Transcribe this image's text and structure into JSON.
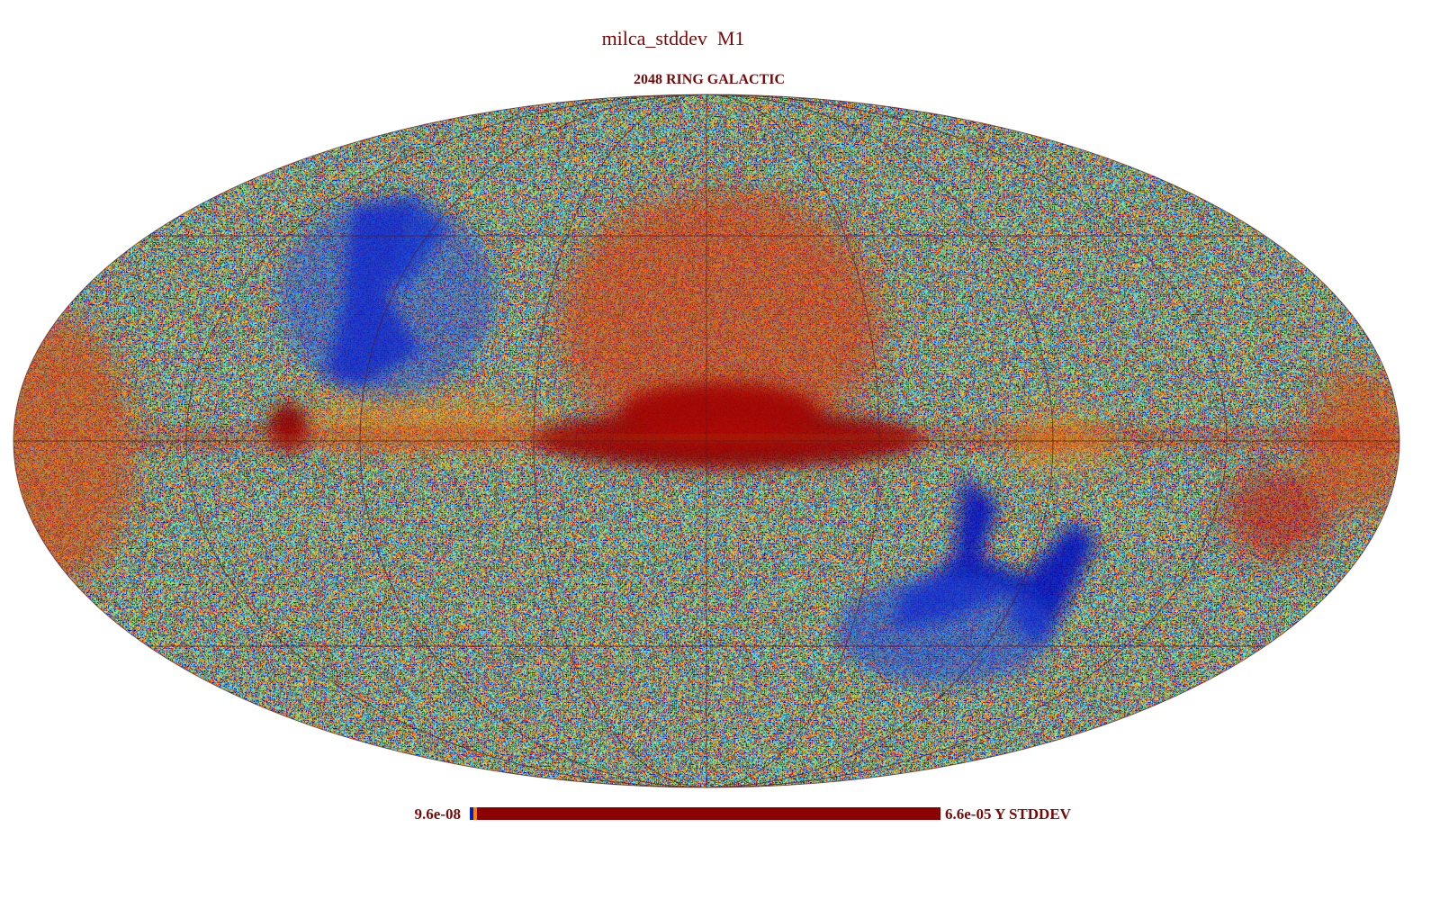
{
  "header": {
    "title": "milca_stddev  M1",
    "subtitle": "2048 RING GALACTIC"
  },
  "colorbar": {
    "min_label": "9.6e-08",
    "max_label": "6.6e-05 Y STDDEV"
  }
}
